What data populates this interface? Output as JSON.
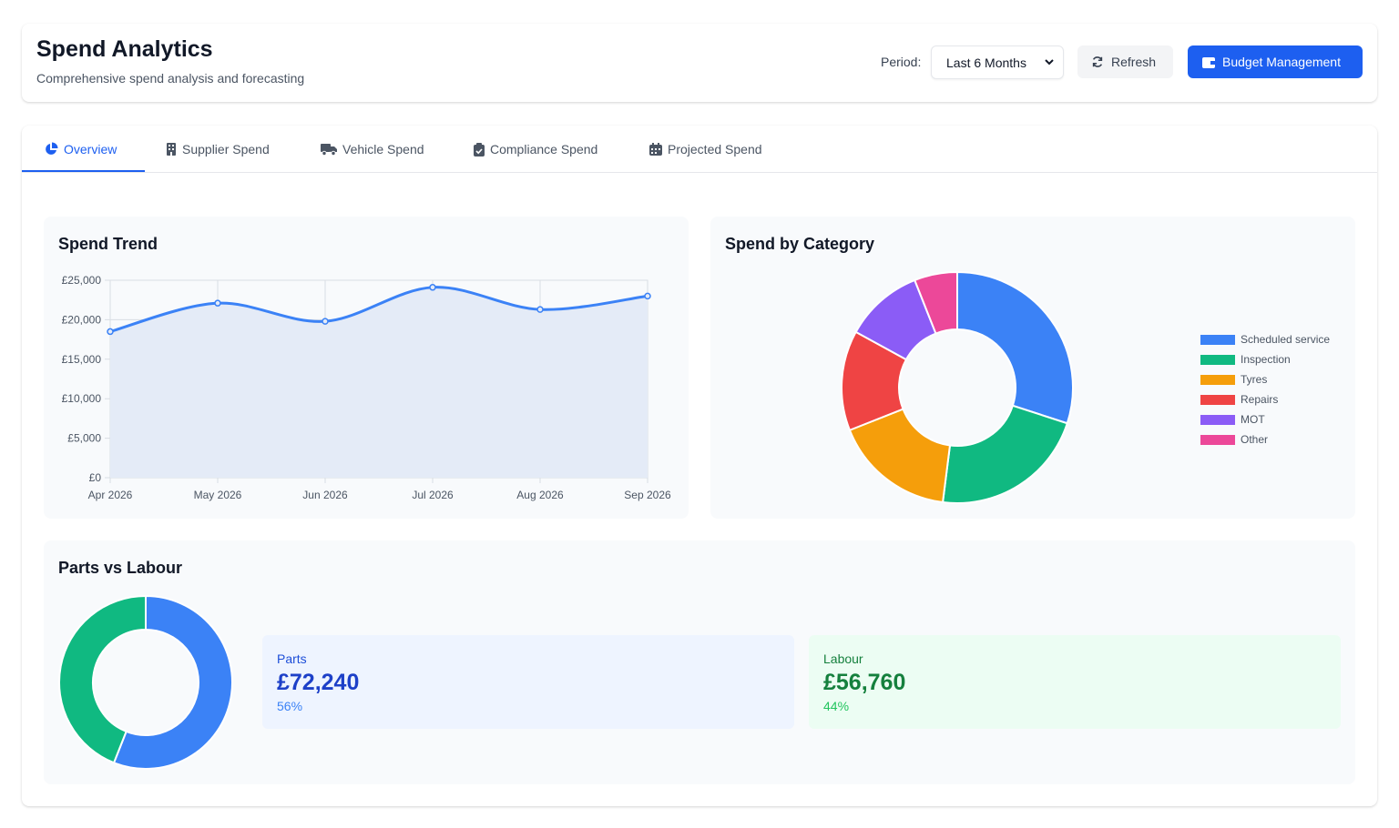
{
  "header": {
    "title": "Spend Analytics",
    "subtitle": "Comprehensive spend analysis and forecasting",
    "period_label": "Period:",
    "period_value": "Last 6 Months",
    "refresh_label": "Refresh",
    "budget_label": "Budget Management"
  },
  "tabs": [
    {
      "label": "Overview",
      "icon": "pie-chart-icon",
      "active": true
    },
    {
      "label": "Supplier Spend",
      "icon": "building-icon"
    },
    {
      "label": "Vehicle Spend",
      "icon": "truck-icon"
    },
    {
      "label": "Compliance Spend",
      "icon": "clipboard-check-icon"
    },
    {
      "label": "Projected Spend",
      "icon": "calendar-icon"
    }
  ],
  "panels": {
    "trend_title": "Spend Trend",
    "category_title": "Spend by Category",
    "parts_labour_title": "Parts vs Labour"
  },
  "parts_labour": {
    "parts": {
      "label": "Parts",
      "value": "£72,240",
      "pct": "56%"
    },
    "labour": {
      "label": "Labour",
      "value": "£56,760",
      "pct": "44%"
    }
  },
  "colors": {
    "primary": "#1d5ff0",
    "blue": "#3b82f6",
    "green": "#10b981",
    "amber": "#f59e0b",
    "red": "#ef4444",
    "purple": "#8b5cf6",
    "pink": "#ec4899"
  },
  "chart_data": [
    {
      "type": "area",
      "title": "Spend Trend",
      "categories": [
        "Apr 2026",
        "May 2026",
        "Jun 2026",
        "Jul 2026",
        "Aug 2026",
        "Sep 2026"
      ],
      "values": [
        18500,
        22100,
        19800,
        24100,
        21300,
        23000
      ],
      "ylim": [
        0,
        25000
      ],
      "yticks": [
        0,
        5000,
        10000,
        15000,
        20000,
        25000
      ],
      "ytick_labels": [
        "£0",
        "£5,000",
        "£10,000",
        "£15,000",
        "£20,000",
        "£25,000"
      ],
      "grid": true
    },
    {
      "type": "pie",
      "title": "Spend by Category",
      "donut": true,
      "categories": [
        "Scheduled service",
        "Inspection",
        "Tyres",
        "Repairs",
        "MOT",
        "Other"
      ],
      "values": [
        30,
        22,
        17,
        14,
        11,
        6
      ],
      "colors": [
        "#3b82f6",
        "#10b981",
        "#f59e0b",
        "#ef4444",
        "#8b5cf6",
        "#ec4899"
      ],
      "legend": "right"
    },
    {
      "type": "pie",
      "title": "Parts vs Labour",
      "donut": true,
      "categories": [
        "Parts",
        "Labour"
      ],
      "values": [
        72240,
        56760
      ],
      "colors": [
        "#3b82f6",
        "#10b981"
      ]
    }
  ]
}
